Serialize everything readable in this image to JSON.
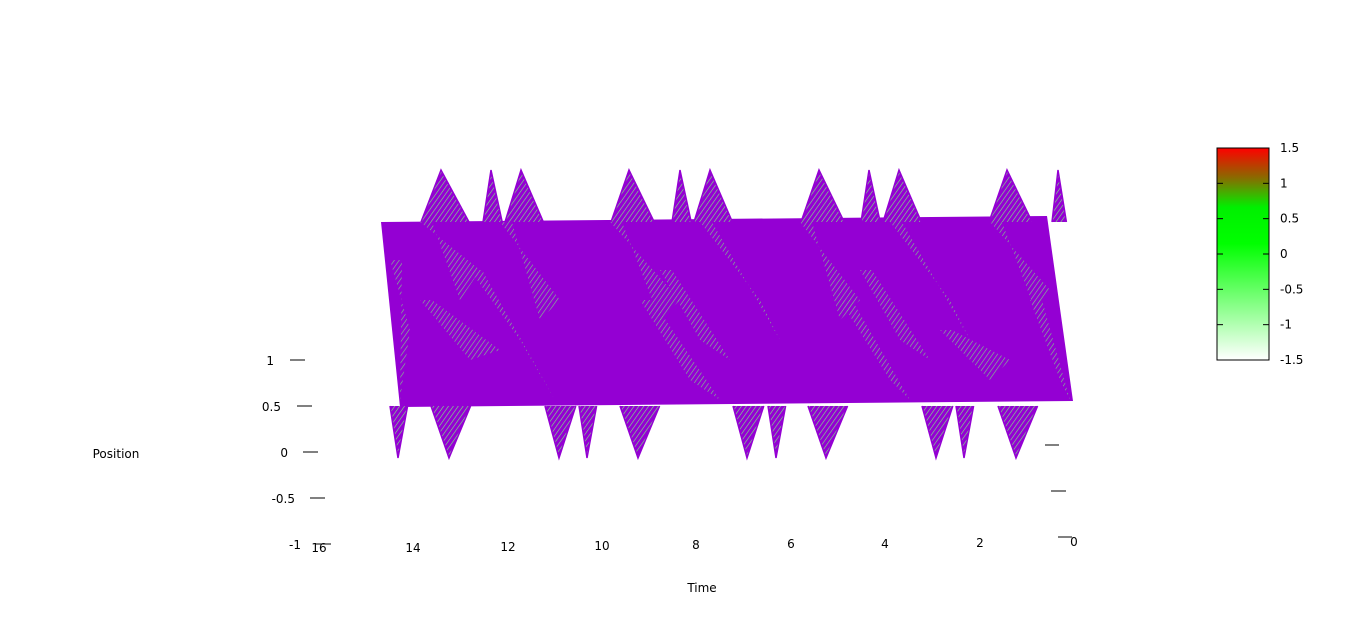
{
  "chart_data": {
    "type": "surface",
    "title": "",
    "xlabel": "Time",
    "ylabel": "Position",
    "x_ticks": [
      "16",
      "14",
      "12",
      "10",
      "8",
      "6",
      "4",
      "2",
      "0"
    ],
    "z_ticks": [
      "1",
      "0.5",
      "0",
      "-0.5",
      "-1"
    ],
    "xlim": [
      0,
      16
    ],
    "zlim": [
      -1,
      1
    ],
    "surface_color": "#9400d3",
    "contour_color": "#00ff00",
    "colorbar": {
      "range": [
        -1.5,
        1.5
      ],
      "ticks": [
        "1.5",
        "1",
        "0.5",
        "0",
        "-0.5",
        "-1",
        "-1.5"
      ],
      "colors": [
        "#ffffff",
        "#00ff00",
        "#ff0000"
      ]
    },
    "peak_times": [
      14.5,
      12.5,
      8.5,
      6.5,
      4.5,
      2.5
    ]
  }
}
